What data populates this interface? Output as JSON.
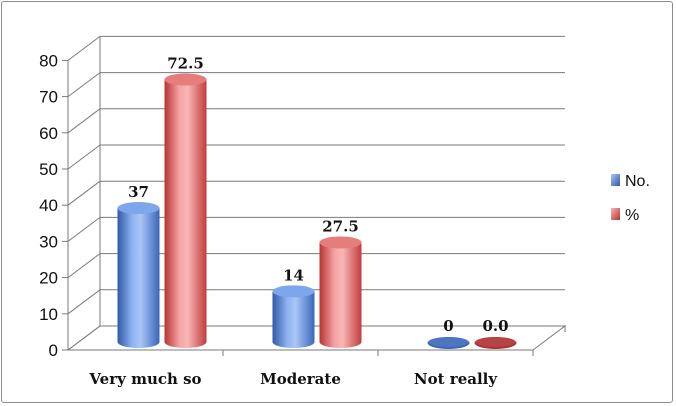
{
  "chart_data": {
    "type": "bar",
    "categories": [
      "Very much so",
      "Moderate",
      "Not really"
    ],
    "series": [
      {
        "name": "No.",
        "values": [
          37,
          14,
          0
        ],
        "labels": [
          "37",
          "14",
          "0"
        ],
        "color": "#4a78c8"
      },
      {
        "name": "%",
        "values": [
          72.5,
          27.5,
          0.0
        ],
        "labels": [
          "72.5",
          "27.5",
          "0.0"
        ],
        "color": "#cc4545"
      }
    ],
    "yticks": [
      "0",
      "10",
      "20",
      "30",
      "40",
      "50",
      "60",
      "70",
      "80"
    ],
    "ylim": [
      0,
      80
    ],
    "grid": true,
    "legend": "right",
    "style": "3d-cylinder"
  }
}
